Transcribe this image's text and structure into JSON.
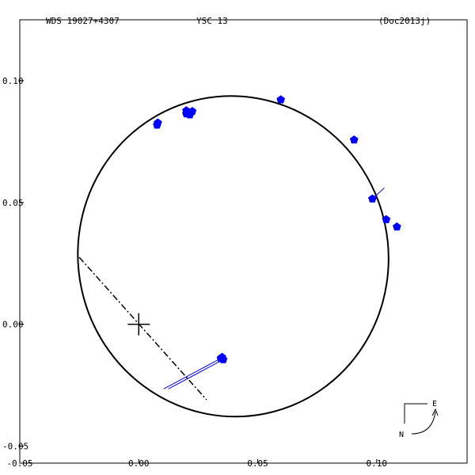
{
  "header": {
    "wds_label": "WDS 19027+4307",
    "discoverer_label": "YSC  13",
    "reference_label": "(Doc2013j)"
  },
  "compass": {
    "east": "E",
    "north": "N"
  },
  "colors": {
    "axes": "#000000",
    "points": "#0000ff",
    "orbit": "#000000"
  },
  "chart_data": {
    "type": "scatter",
    "title": "",
    "xlabel": "",
    "ylabel": "",
    "xlim": [
      -0.05,
      0.138
    ],
    "ylim": [
      -0.057,
      0.125
    ],
    "x_ticks": [
      {
        "value": -0.05,
        "label": "-0.05"
      },
      {
        "value": 0.0,
        "label": "0.00"
      },
      {
        "value": 0.05,
        "label": "0.05"
      },
      {
        "value": 0.1,
        "label": "0.10"
      }
    ],
    "y_ticks": [
      {
        "value": 0.1,
        "label": "0.10"
      },
      {
        "value": 0.05,
        "label": "0.05"
      },
      {
        "value": 0.0,
        "label": "0.00"
      },
      {
        "value": -0.05,
        "label": "-0.05"
      }
    ],
    "grid": false,
    "primary": {
      "x": 0.0,
      "y": 0.0
    },
    "orbit": {
      "type": "ellipse",
      "cx": 0.0397,
      "cy": 0.0279,
      "rx": 0.0652,
      "ry": 0.0659,
      "rotation_deg": -12
    },
    "line_of_nodes": {
      "x1": -0.025,
      "y1": 0.0275,
      "x2": 0.0285,
      "y2": -0.031
    },
    "observations": [
      {
        "x": 0.0077,
        "y": 0.0818
      },
      {
        "x": 0.008,
        "y": 0.0827
      },
      {
        "x": 0.02,
        "y": 0.0864
      },
      {
        "x": 0.021,
        "y": 0.087
      },
      {
        "x": 0.0215,
        "y": 0.086
      },
      {
        "x": 0.0225,
        "y": 0.0874
      },
      {
        "x": 0.02,
        "y": 0.0877
      },
      {
        "x": 0.0597,
        "y": 0.0922
      },
      {
        "x": 0.0905,
        "y": 0.0757
      },
      {
        "x": 0.0982,
        "y": 0.0515
      },
      {
        "x": 0.104,
        "y": 0.043
      },
      {
        "x": 0.1085,
        "y": 0.04
      },
      {
        "x": 0.0345,
        "y": -0.014
      },
      {
        "x": 0.0355,
        "y": -0.0145
      },
      {
        "x": 0.035,
        "y": -0.0135
      }
    ],
    "residuals": [
      {
        "x1": 0.0982,
        "y1": 0.0515,
        "x2": 0.1032,
        "y2": 0.056
      },
      {
        "x1": 0.0345,
        "y1": -0.014,
        "x2": 0.0105,
        "y2": -0.0265
      },
      {
        "x1": 0.0355,
        "y1": -0.0145,
        "x2": 0.0125,
        "y2": -0.0265
      }
    ]
  }
}
